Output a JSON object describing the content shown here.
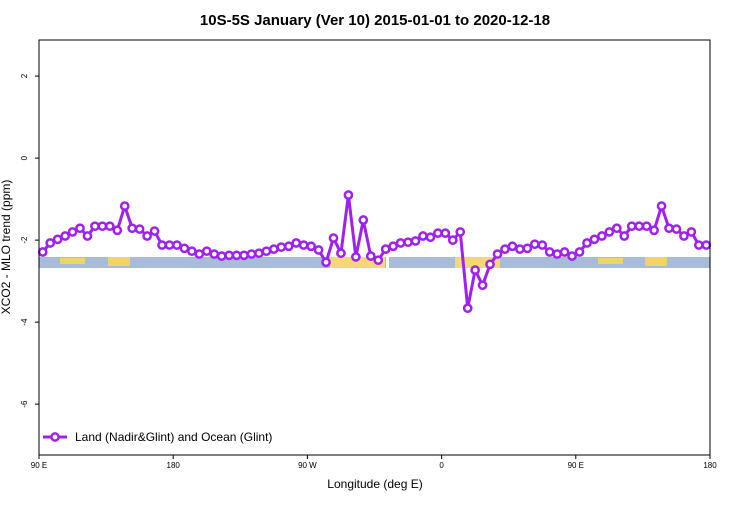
{
  "chart_data": {
    "type": "line",
    "title": "10S-5S January (Ver 10)   2015-01-01 to 2020-12-18",
    "x_label": "Longitude (deg E)",
    "y_label": "XCO2 - MLO trend (ppm)",
    "xlim": [
      90,
      540
    ],
    "xticks": [
      {
        "value": 90,
        "label": "90 E"
      },
      {
        "value": 180,
        "label": "180"
      },
      {
        "value": 270,
        "label": "90 W"
      },
      {
        "value": 360,
        "label": "0"
      },
      {
        "value": 450,
        "label": "90 E"
      },
      {
        "value": 540,
        "label": "180"
      }
    ],
    "ylim": [
      -7.24,
      2.88
    ],
    "yticks": [
      -6,
      -4,
      -2,
      0,
      2
    ],
    "legend": "bottom-left",
    "x": [
      92.5,
      97.5,
      102.5,
      107.5,
      112.5,
      117.5,
      122.5,
      127.5,
      132.5,
      137.5,
      142.5,
      147.5,
      152.5,
      157.5,
      162.5,
      167.5,
      172.5,
      177.5,
      182.5,
      187.5,
      192.5,
      197.5,
      202.5,
      207.5,
      212.5,
      217.5,
      222.5,
      227.5,
      232.5,
      237.5,
      242.5,
      247.5,
      252.5,
      257.5,
      262.5,
      267.5,
      272.5,
      277.5,
      282.5,
      287.5,
      292.5,
      297.5,
      302.5,
      307.5,
      312.5,
      317.5,
      322.5,
      327.5,
      332.5,
      337.5,
      342.5,
      347.5,
      352.5,
      357.5,
      362.5,
      367.5,
      372.5,
      377.5,
      382.5,
      387.5,
      392.5,
      397.5,
      402.5,
      407.5,
      412.5,
      417.5,
      422.5,
      427.5,
      432.5,
      437.5,
      442.5,
      447.5,
      452.5,
      457.5,
      462.5,
      467.5,
      472.5,
      477.5,
      482.5,
      487.5,
      492.5,
      497.5,
      502.5,
      507.5,
      512.5,
      517.5,
      522.5,
      527.5,
      532.5,
      537.5
    ],
    "series": [
      {
        "name": "Land (Nadir&Glint) and Ocean (Glint)",
        "color": "#a020f0",
        "values": [
          -2.29,
          -2.07,
          -1.98,
          -1.9,
          -1.8,
          -1.71,
          -1.9,
          -1.66,
          -1.66,
          -1.66,
          -1.76,
          -1.17,
          -1.71,
          -1.73,
          -1.9,
          -1.78,
          -2.12,
          -2.12,
          -2.12,
          -2.2,
          -2.27,
          -2.34,
          -2.27,
          -2.34,
          -2.39,
          -2.37,
          -2.37,
          -2.37,
          -2.34,
          -2.32,
          -2.27,
          -2.22,
          -2.17,
          -2.15,
          -2.07,
          -2.12,
          -2.15,
          -2.24,
          -2.54,
          -1.95,
          -2.32,
          -0.9,
          -2.41,
          -1.51,
          -2.39,
          -2.49,
          -2.22,
          -2.15,
          -2.07,
          -2.05,
          -2.02,
          -1.9,
          -1.93,
          -1.83,
          -1.83,
          -2.0,
          -1.8,
          -3.66,
          -2.73,
          -3.1,
          -2.59,
          -2.34,
          -2.22,
          -2.15,
          -2.22,
          -2.2,
          -2.1,
          -2.12,
          -2.29,
          -2.34,
          -2.29,
          -2.39,
          -2.29,
          -2.07,
          -1.98,
          -1.9,
          -1.8,
          -1.71,
          -1.9,
          -1.66,
          -1.66,
          -1.66,
          -1.76,
          -1.17,
          -1.71,
          -1.73,
          -1.9,
          -1.8,
          -2.12,
          -2.12
        ]
      }
    ]
  }
}
